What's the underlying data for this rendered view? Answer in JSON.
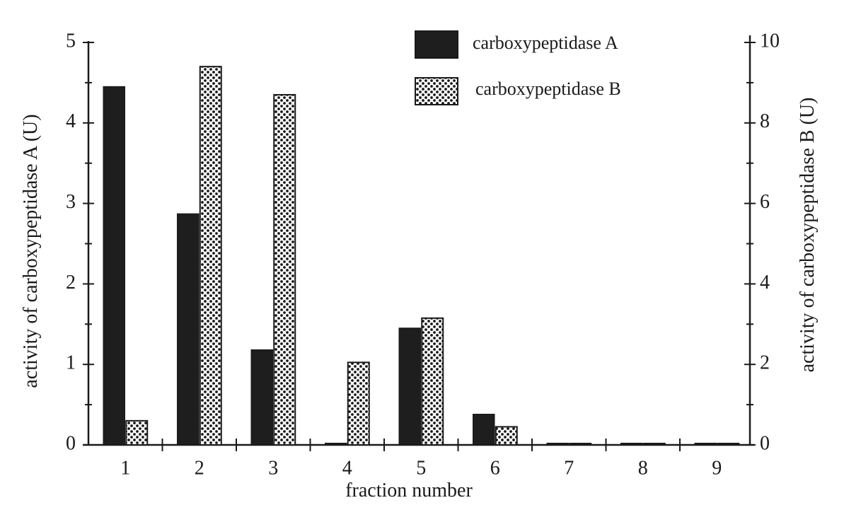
{
  "chart_data": {
    "type": "bar",
    "categories": [
      "1",
      "2",
      "3",
      "4",
      "5",
      "6",
      "7",
      "8",
      "9"
    ],
    "series": [
      {
        "name": "carboxypeptidase A",
        "axis": "left",
        "fill": "solid",
        "values": [
          4.45,
          2.87,
          1.18,
          0.02,
          1.45,
          0.38,
          0.02,
          0.02,
          0.02
        ]
      },
      {
        "name": "carboxypeptidase B",
        "axis": "right",
        "fill": "dotted",
        "values": [
          0.6,
          9.4,
          8.7,
          2.05,
          3.15,
          0.45,
          0.0,
          0.0,
          0.0
        ]
      }
    ],
    "xlabel": "fraction number",
    "ylabel_left": "activity of carboxypeptidase A (U)",
    "ylabel_right": "activity of carboxypeptidase B (U)",
    "ylim_left": [
      0,
      5
    ],
    "ylim_right": [
      0,
      10
    ],
    "yticks_left": [
      "0",
      "1",
      "2",
      "3",
      "4",
      "5"
    ],
    "yticks_right": [
      "0",
      "2",
      "4",
      "6",
      "8",
      "10"
    ],
    "grid": false,
    "legend_position": "top-right"
  },
  "colors": {
    "ink": "#1a1a1a",
    "solid_bar": "#1e1e1e",
    "dotted_bar_bg": "#ffffff",
    "dotted_bar_dots": "#1a1a1a"
  }
}
